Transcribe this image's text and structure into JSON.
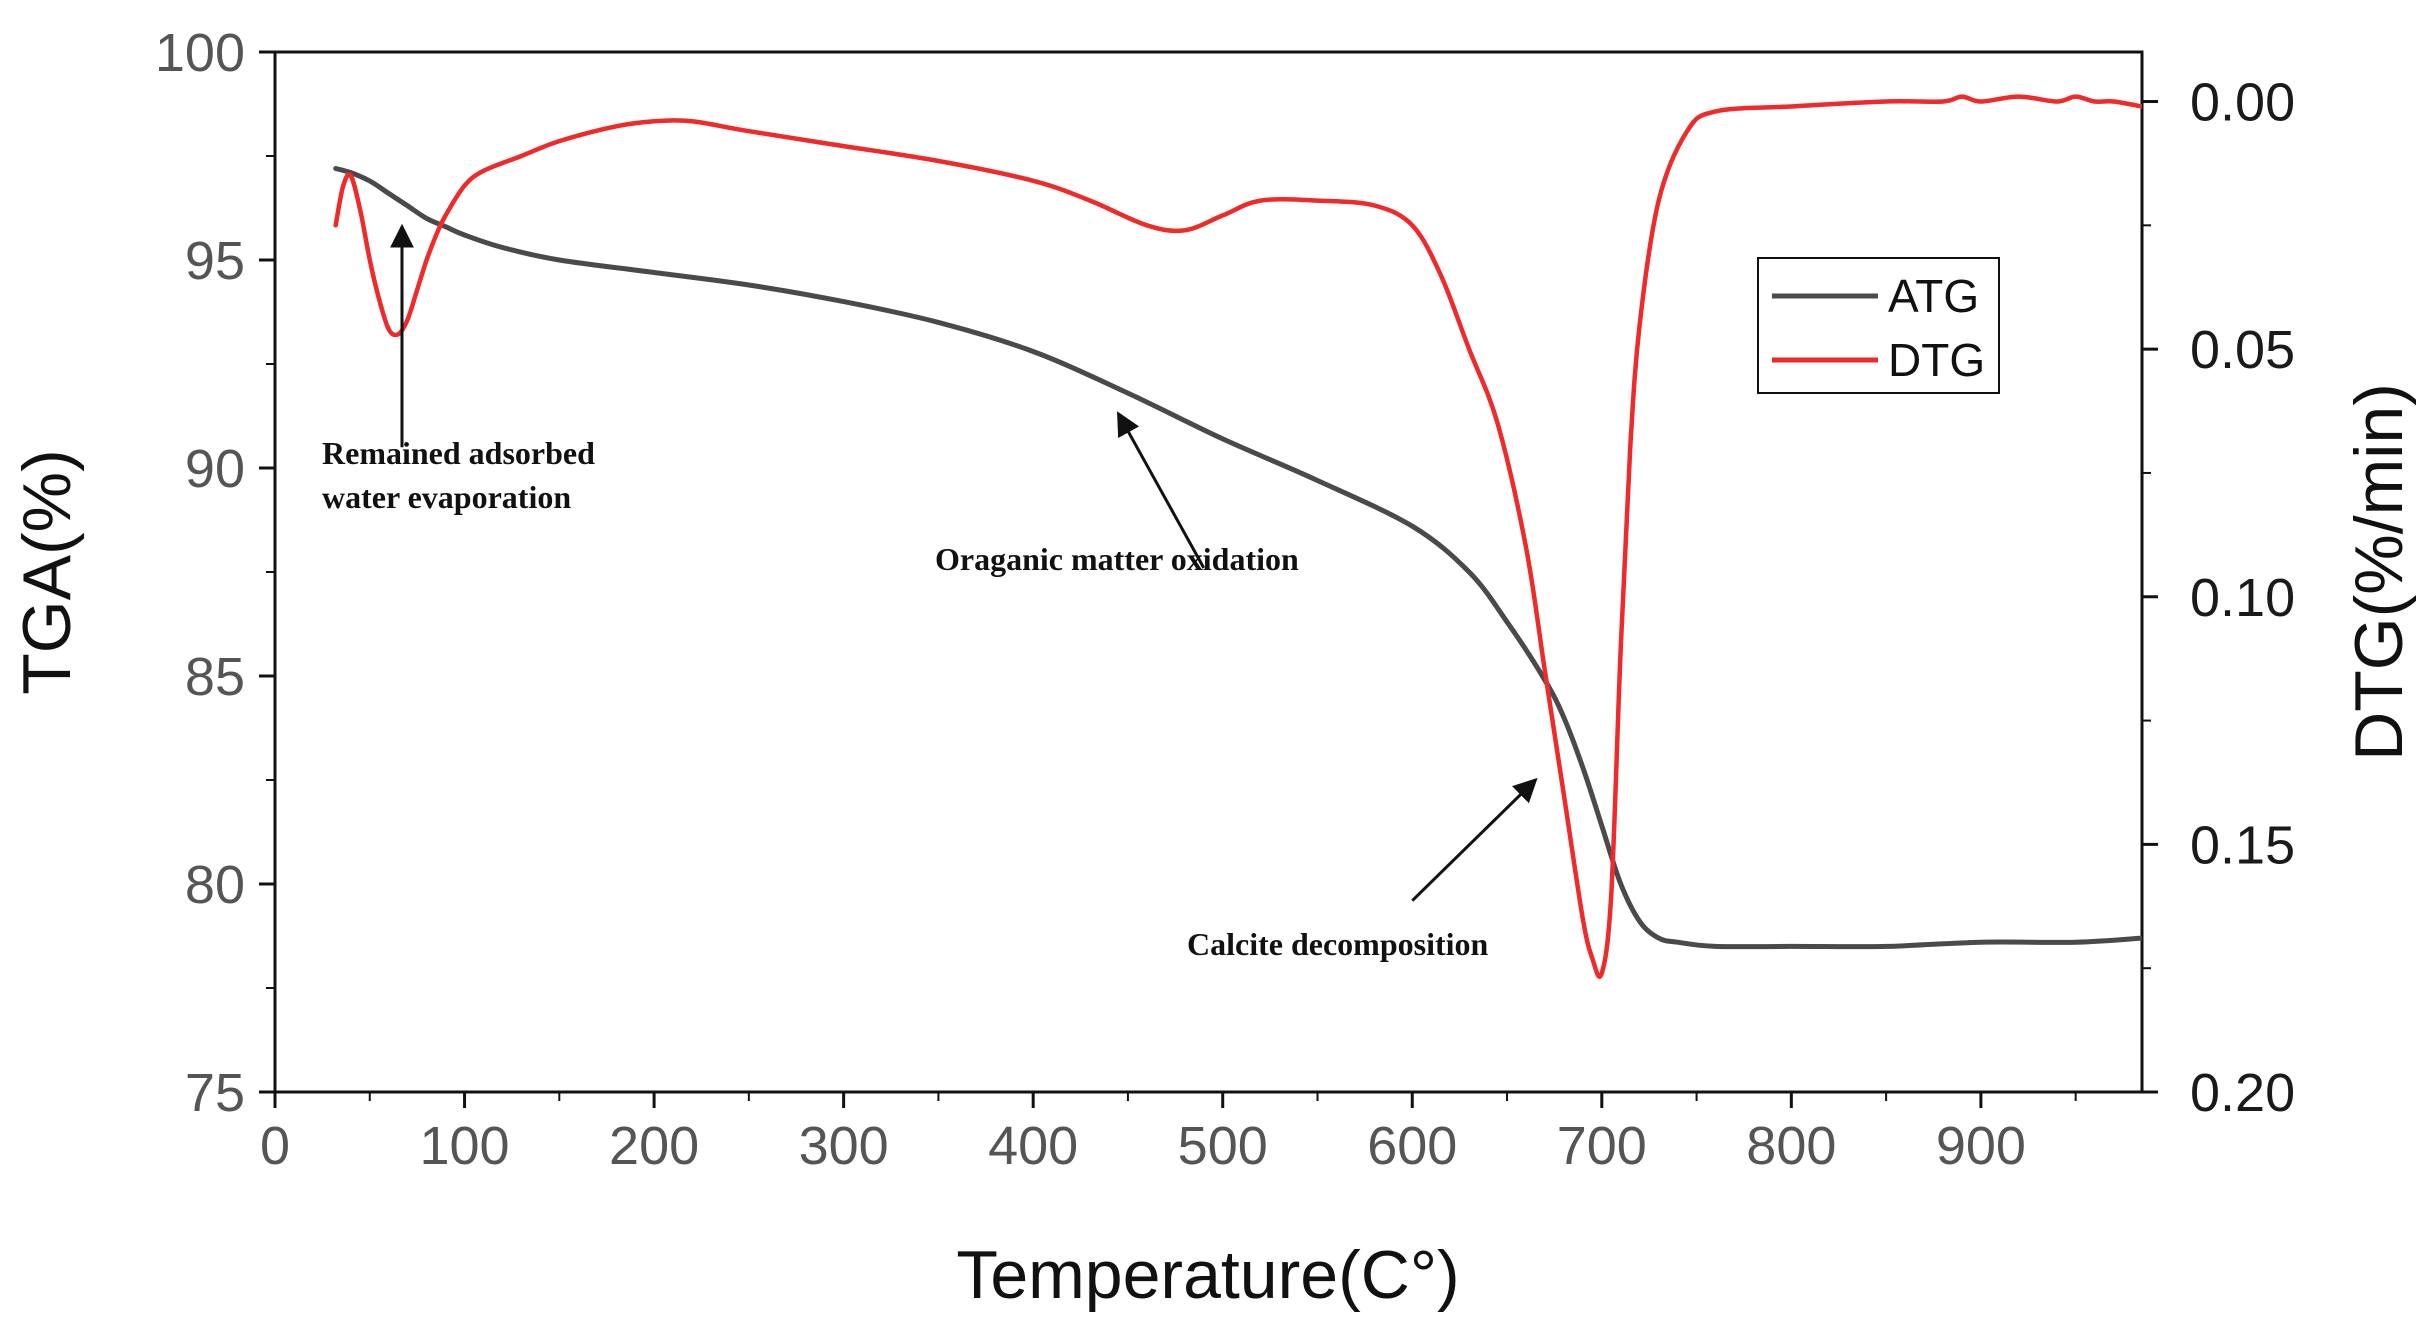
{
  "chart_data": {
    "type": "line",
    "xlabel": "Temperature(C°)",
    "ylabel_left": "TGA(%)",
    "ylabel_right": "DTG(%/min)",
    "xlim": [
      0,
      985
    ],
    "ylim_left": [
      75,
      100
    ],
    "ylim_right": [
      0.2,
      -0.01
    ],
    "x_ticks": [
      0,
      100,
      200,
      300,
      400,
      500,
      600,
      700,
      800,
      900
    ],
    "x_tick_labels": [
      "0",
      "100",
      "200",
      "300",
      "400",
      "500",
      "600",
      "700",
      "800",
      "900"
    ],
    "y_left_ticks": [
      75,
      80,
      85,
      90,
      95,
      100
    ],
    "y_left_tick_labels": [
      "75",
      "80",
      "85",
      "90",
      "95",
      "100"
    ],
    "y_right_ticks": [
      0.0,
      0.05,
      0.1,
      0.15,
      0.2
    ],
    "y_right_tick_labels": [
      "0.00",
      "0.05",
      "0.10",
      "0.15",
      "0.20"
    ],
    "legend": {
      "position": "top-right"
    },
    "series": [
      {
        "name": "ATG",
        "axis": "left",
        "color": "#4a4a4a",
        "x": [
          32,
          40,
          50,
          60,
          70,
          80,
          90,
          100,
          120,
          150,
          200,
          250,
          300,
          350,
          400,
          450,
          500,
          550,
          600,
          630,
          650,
          670,
          680,
          690,
          700,
          710,
          720,
          730,
          740,
          760,
          800,
          850,
          900,
          950,
          985
        ],
        "y": [
          97.2,
          97.1,
          96.9,
          96.6,
          96.3,
          96.0,
          95.8,
          95.6,
          95.3,
          95.0,
          94.7,
          94.4,
          94.0,
          93.5,
          92.8,
          91.8,
          90.7,
          89.7,
          88.6,
          87.5,
          86.3,
          84.9,
          84.0,
          82.8,
          81.4,
          80.0,
          79.1,
          78.7,
          78.6,
          78.5,
          78.5,
          78.5,
          78.6,
          78.6,
          78.7
        ]
      },
      {
        "name": "DTG",
        "axis": "right",
        "color": "#ee2a2a",
        "x": [
          32,
          36,
          40,
          45,
          50,
          55,
          60,
          65,
          70,
          75,
          80,
          85,
          90,
          100,
          110,
          130,
          150,
          180,
          200,
          220,
          250,
          300,
          350,
          400,
          430,
          460,
          480,
          500,
          520,
          550,
          580,
          600,
          615,
          630,
          645,
          660,
          670,
          680,
          690,
          695,
          700,
          705,
          710,
          715,
          720,
          730,
          745,
          760,
          800,
          850,
          880,
          890,
          900,
          920,
          940,
          950,
          960,
          970,
          985
        ],
        "y": [
          0.025,
          0.017,
          0.015,
          0.022,
          0.032,
          0.04,
          0.046,
          0.047,
          0.044,
          0.038,
          0.032,
          0.027,
          0.023,
          0.017,
          0.014,
          0.011,
          0.008,
          0.005,
          0.004,
          0.004,
          0.006,
          0.009,
          0.012,
          0.016,
          0.02,
          0.025,
          0.026,
          0.023,
          0.02,
          0.02,
          0.021,
          0.025,
          0.035,
          0.05,
          0.065,
          0.09,
          0.115,
          0.14,
          0.165,
          0.173,
          0.176,
          0.16,
          0.11,
          0.07,
          0.045,
          0.02,
          0.006,
          0.002,
          0.001,
          0.0,
          0.0,
          -0.001,
          0.0,
          -0.001,
          0.0,
          -0.001,
          0.0,
          0.0,
          0.001
        ]
      }
    ],
    "annotations": [
      {
        "id": "water",
        "lines": [
          "Remained adsorbed",
          "water evaporation"
        ],
        "arrow_from": [
          67,
          90.5
        ],
        "arrow_to": [
          67,
          95.8
        ]
      },
      {
        "id": "organic",
        "lines": [
          "Oraganic matter oxidation"
        ],
        "arrow_from": [
          490,
          87.6
        ],
        "arrow_to": [
          445,
          91.3
        ]
      },
      {
        "id": "calcite",
        "lines": [
          "Calcite decomposition"
        ],
        "arrow_from": [
          600,
          79.6
        ],
        "arrow_to": [
          665,
          82.5
        ]
      }
    ]
  }
}
